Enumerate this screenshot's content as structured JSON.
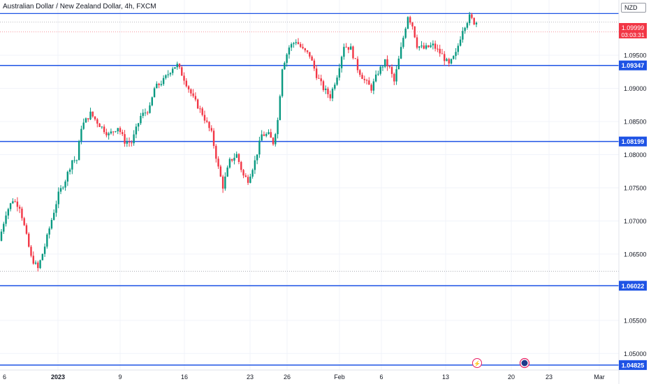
{
  "header": {
    "title": "Australian Dollar / New Zealand Dollar, 4h, FXCM",
    "currency": "NZD"
  },
  "price_tag": {
    "value": "1.09999",
    "countdown": "03:03:31",
    "color": "#f23645"
  },
  "colors": {
    "up": "#089981",
    "down": "#f23645",
    "level_line": "#1e53e5",
    "axis_text": "#131722",
    "grid": "#f0f3fa"
  },
  "chart_data": {
    "type": "candlestick",
    "symbol": "AUDNZD",
    "timeframe": "4h",
    "ylim": [
      1.0475,
      1.1025
    ],
    "yticks": [
      "1.05000",
      "1.05500",
      "1.06000",
      "1.06500",
      "1.07000",
      "1.07500",
      "1.08000",
      "1.08500",
      "1.09000",
      "1.09500"
    ],
    "xlabels": [
      {
        "label": "6",
        "bold": false
      },
      {
        "label": "2023",
        "bold": true
      },
      {
        "label": "9",
        "bold": false
      },
      {
        "label": "16",
        "bold": false
      },
      {
        "label": "23",
        "bold": false
      },
      {
        "label": "26",
        "bold": false
      },
      {
        "label": "Feb",
        "bold": false
      },
      {
        "label": "6",
        "bold": false
      },
      {
        "label": "13",
        "bold": false
      },
      {
        "label": "20",
        "bold": false
      },
      {
        "label": "23",
        "bold": false
      },
      {
        "label": "Mar",
        "bold": false
      }
    ],
    "horizontal_levels": [
      {
        "label": "1.09347",
        "value": 1.09347
      },
      {
        "label": "1.08199",
        "value": 1.08199
      },
      {
        "label": "1.06022",
        "value": 1.06022
      },
      {
        "label": "1.04825",
        "value": 1.04825
      }
    ],
    "upper_level": 1.1013,
    "dotted_levels": [
      1.1,
      1.1,
      1.0624
    ],
    "waypoints": [
      [
        0,
        1.067
      ],
      [
        3,
        1.0712
      ],
      [
        6,
        1.0732
      ],
      [
        9,
        1.0722
      ],
      [
        11,
        1.0692
      ],
      [
        14,
        1.0645
      ],
      [
        17,
        1.0628
      ],
      [
        20,
        1.0662
      ],
      [
        23,
        1.0702
      ],
      [
        26,
        1.074
      ],
      [
        29,
        1.0762
      ],
      [
        32,
        1.0792
      ],
      [
        34,
        1.0792
      ],
      [
        36,
        1.0842
      ],
      [
        40,
        1.0862
      ],
      [
        44,
        1.0845
      ],
      [
        48,
        1.083
      ],
      [
        52,
        1.0842
      ],
      [
        55,
        1.082
      ],
      [
        58,
        1.0818
      ],
      [
        62,
        1.0858
      ],
      [
        66,
        1.087
      ],
      [
        68,
        1.09
      ],
      [
        72,
        1.0912
      ],
      [
        76,
        1.0932
      ],
      [
        78,
        1.0935
      ],
      [
        81,
        1.0915
      ],
      [
        85,
        1.0885
      ],
      [
        89,
        1.0862
      ],
      [
        93,
        1.0832
      ],
      [
        96,
        1.078
      ],
      [
        98,
        1.0752
      ],
      [
        101,
        1.079
      ],
      [
        104,
        1.08
      ],
      [
        107,
        1.0768
      ],
      [
        109,
        1.0762
      ],
      [
        112,
        1.079
      ],
      [
        115,
        1.083
      ],
      [
        118,
        1.083
      ],
      [
        120,
        1.0818
      ],
      [
        122,
        1.0852
      ],
      [
        124,
        1.0932
      ],
      [
        127,
        1.0962
      ],
      [
        130,
        1.0972
      ],
      [
        133,
        1.0958
      ],
      [
        136,
        1.095
      ],
      [
        139,
        1.092
      ],
      [
        142,
        1.09
      ],
      [
        145,
        1.0888
      ],
      [
        148,
        1.092
      ],
      [
        151,
        1.0965
      ],
      [
        154,
        1.096
      ],
      [
        157,
        1.093
      ],
      [
        160,
        1.0912
      ],
      [
        163,
        1.09
      ],
      [
        166,
        1.0925
      ],
      [
        169,
        1.094
      ],
      [
        171,
        1.093
      ],
      [
        173,
        1.091
      ],
      [
        176,
        1.096
      ],
      [
        179,
        1.101
      ],
      [
        181,
        1.0995
      ],
      [
        183,
        1.0965
      ],
      [
        186,
        1.096
      ],
      [
        190,
        1.0965
      ],
      [
        194,
        1.095
      ],
      [
        197,
        1.0935
      ],
      [
        200,
        1.0952
      ],
      [
        203,
        1.099
      ],
      [
        206,
        1.1008
      ],
      [
        208,
        1.1
      ]
    ],
    "num_candles": 209
  },
  "markers": [
    {
      "name": "flash-event-icon",
      "glyph": "⚡"
    },
    {
      "name": "flag-event-icon",
      "glyph": "●"
    }
  ]
}
